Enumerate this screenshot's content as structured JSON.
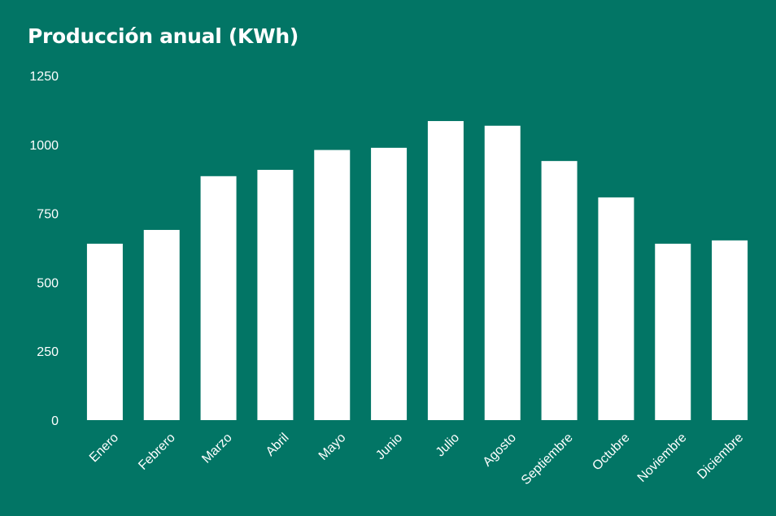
{
  "chart_data": {
    "type": "bar",
    "title": "Producción anual (KWh)",
    "xlabel": "",
    "ylabel": "",
    "ylim": [
      0,
      1250
    ],
    "yticks": [
      0,
      250,
      500,
      750,
      1000,
      1250
    ],
    "grid": false,
    "categories": [
      "Enero",
      "Febrero",
      "Marzo",
      "Abril",
      "Mayo",
      "Junio",
      "Julio",
      "Agosto",
      "Septiembre",
      "Octubre",
      "Noviembre",
      "Diciembre"
    ],
    "values": [
      640,
      690,
      885,
      908,
      980,
      988,
      1085,
      1068,
      940,
      808,
      640,
      652
    ],
    "colors": {
      "background": "#027565",
      "bar": "#ffffff",
      "text": "#ffffff"
    }
  }
}
